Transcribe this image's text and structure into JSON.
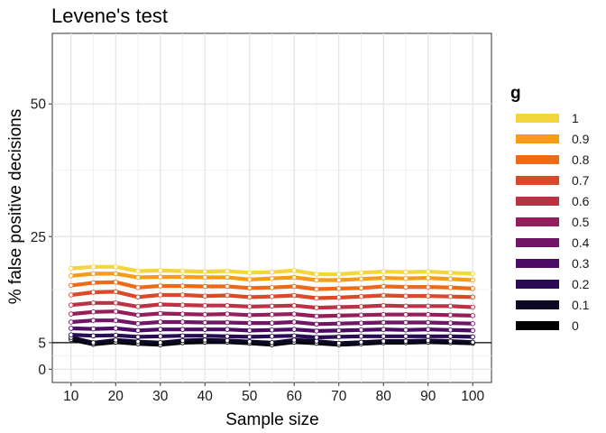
{
  "chart_data": {
    "type": "line",
    "title": "Levene's test",
    "xlabel": "Sample size",
    "ylabel": "% false positive decisions",
    "x": [
      10,
      15,
      20,
      25,
      30,
      35,
      40,
      45,
      50,
      55,
      60,
      65,
      70,
      75,
      80,
      85,
      90,
      95,
      100
    ],
    "xticks": [
      10,
      20,
      30,
      40,
      50,
      60,
      70,
      80,
      90,
      100
    ],
    "yticks": [
      0,
      5,
      25,
      50
    ],
    "xlim": [
      5.8,
      104.2
    ],
    "ylim": [
      -2.5,
      63.3
    ],
    "grid": true,
    "reference_line": 5,
    "legend_title": "g",
    "legend_position": "right",
    "series": [
      {
        "name": "1",
        "color": "#F3D63B",
        "values": [
          19.0,
          19.3,
          19.3,
          18.5,
          18.6,
          18.5,
          18.4,
          18.5,
          18.2,
          18.3,
          18.6,
          17.9,
          17.9,
          18.2,
          18.4,
          18.3,
          18.4,
          18.2,
          18.0
        ]
      },
      {
        "name": "0.9",
        "color": "#F89B16",
        "values": [
          17.6,
          18.0,
          18.0,
          17.3,
          17.4,
          17.4,
          17.3,
          17.3,
          16.9,
          17.1,
          17.3,
          16.8,
          16.8,
          17.0,
          17.2,
          17.1,
          17.2,
          17.0,
          16.8
        ]
      },
      {
        "name": "0.8",
        "color": "#EE6A16",
        "values": [
          15.8,
          16.3,
          16.4,
          15.4,
          15.7,
          15.7,
          15.6,
          15.6,
          15.3,
          15.4,
          15.6,
          15.1,
          15.2,
          15.3,
          15.6,
          15.5,
          15.5,
          15.4,
          15.2
        ]
      },
      {
        "name": "0.7",
        "color": "#DB4A28",
        "values": [
          14.0,
          14.5,
          14.6,
          13.6,
          14.0,
          14.0,
          13.8,
          13.9,
          13.6,
          13.7,
          13.9,
          13.4,
          13.5,
          13.7,
          13.9,
          13.8,
          13.8,
          13.7,
          13.6
        ]
      },
      {
        "name": "0.6",
        "color": "#BB3245",
        "values": [
          12.1,
          12.5,
          12.5,
          11.8,
          12.2,
          12.1,
          12.0,
          12.0,
          11.8,
          11.9,
          12.0,
          11.6,
          11.7,
          11.8,
          12.0,
          11.9,
          11.9,
          11.9,
          11.7
        ]
      },
      {
        "name": "0.5",
        "color": "#951D5A",
        "values": [
          10.4,
          10.8,
          10.9,
          10.2,
          10.5,
          10.4,
          10.3,
          10.4,
          10.2,
          10.3,
          10.4,
          10.0,
          10.1,
          10.2,
          10.3,
          10.3,
          10.3,
          10.2,
          10.1
        ]
      },
      {
        "name": "0.4",
        "color": "#711566",
        "values": [
          8.9,
          9.2,
          9.2,
          8.6,
          8.9,
          8.9,
          8.8,
          8.8,
          8.7,
          8.7,
          8.9,
          8.5,
          8.6,
          8.7,
          8.8,
          8.8,
          8.8,
          8.7,
          8.6
        ]
      },
      {
        "name": "0.3",
        "color": "#4E0B66",
        "values": [
          7.7,
          7.6,
          7.7,
          7.3,
          7.5,
          7.5,
          7.5,
          7.5,
          7.3,
          7.4,
          7.5,
          7.2,
          7.3,
          7.4,
          7.5,
          7.4,
          7.5,
          7.4,
          7.3
        ]
      },
      {
        "name": "0.2",
        "color": "#2A0B56",
        "values": [
          6.5,
          6.3,
          6.4,
          6.1,
          6.2,
          6.3,
          6.3,
          6.2,
          6.1,
          6.2,
          6.3,
          6.0,
          6.1,
          6.2,
          6.2,
          6.2,
          6.2,
          6.2,
          6.1
        ]
      },
      {
        "name": "0.1",
        "color": "#0D0826",
        "values": [
          6.0,
          5.0,
          5.5,
          5.2,
          5.0,
          5.4,
          5.5,
          5.4,
          5.2,
          5.0,
          5.5,
          5.3,
          4.9,
          5.1,
          5.3,
          5.3,
          5.4,
          5.3,
          5.1
        ]
      },
      {
        "name": "0",
        "color": "#000000",
        "values": [
          5.6,
          4.7,
          5.1,
          4.8,
          4.6,
          5.0,
          5.1,
          5.1,
          4.9,
          4.6,
          5.1,
          4.9,
          4.6,
          4.8,
          5.0,
          5.0,
          5.1,
          5.0,
          4.9
        ]
      }
    ]
  }
}
